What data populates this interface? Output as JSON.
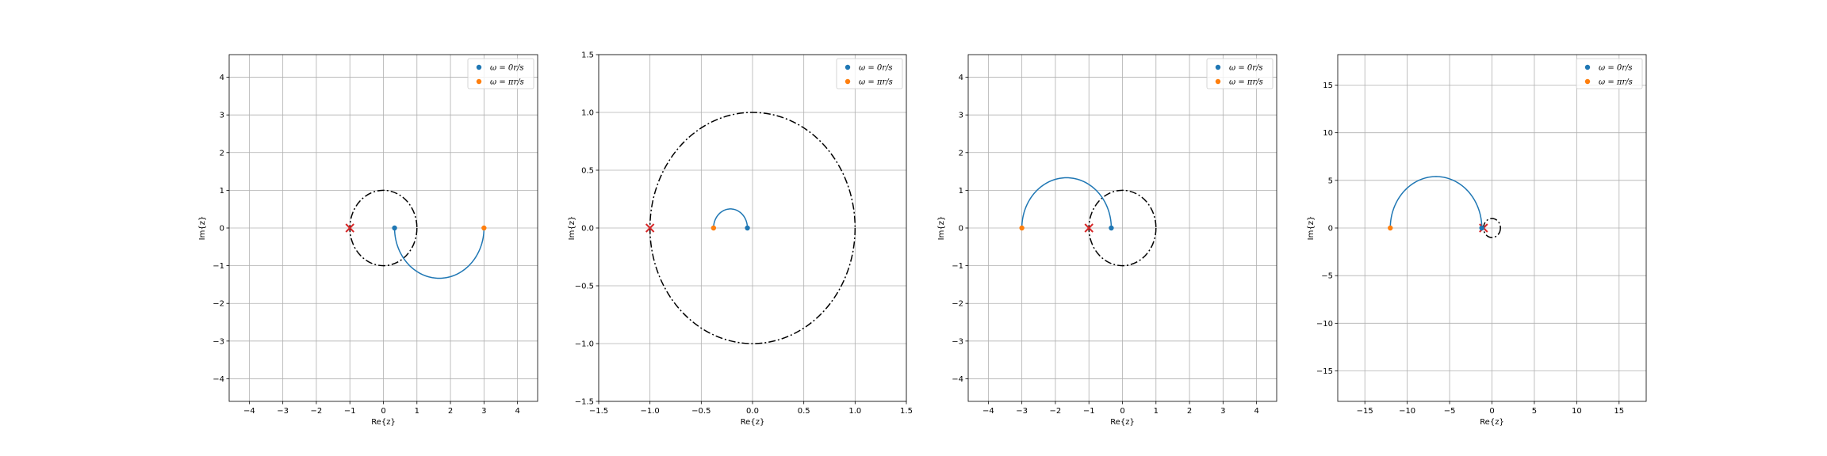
{
  "chart_data": [
    {
      "type": "scatter",
      "xlabel": "Re{z}",
      "ylabel": "Im{z}",
      "xlim": [
        -4.6,
        4.6
      ],
      "ylim": [
        -4.6,
        4.6
      ],
      "xticks": [
        -4,
        -3,
        -2,
        -1,
        0,
        1,
        2,
        3,
        4
      ],
      "yticks": [
        -4,
        -3,
        -2,
        -1,
        0,
        1,
        2,
        3,
        4
      ],
      "grid": true,
      "unit_circle": {
        "center": [
          0,
          0
        ],
        "radius": 1
      },
      "critical_point": [
        -1,
        0
      ],
      "locus": {
        "start": [
          0.333,
          0
        ],
        "end": [
          3,
          0
        ],
        "bulge": "down"
      },
      "series": [
        {
          "name": "$\\omega = 0r/s$",
          "label": "ω = 0r/s",
          "color": "#1f77b4",
          "x": [
            0.333
          ],
          "y": [
            0
          ]
        },
        {
          "name": "$\\omega = \\pi r/s$",
          "label": "ω = πr/s",
          "color": "#ff7f0e",
          "x": [
            3
          ],
          "y": [
            0
          ]
        }
      ],
      "legend": "top-right"
    },
    {
      "type": "scatter",
      "xlabel": "Re{z}",
      "ylabel": "Im{z}",
      "xlim": [
        -1.5,
        1.5
      ],
      "ylim": [
        -1.5,
        1.5
      ],
      "xticks": [
        -1.5,
        -1.0,
        -0.5,
        0.0,
        0.5,
        1.0,
        1.5
      ],
      "yticks": [
        -1.5,
        -1.0,
        -0.5,
        0.0,
        0.5,
        1.0,
        1.5
      ],
      "grid": true,
      "unit_circle": {
        "center": [
          0,
          0
        ],
        "radius": 1
      },
      "critical_point": [
        -1,
        0
      ],
      "locus": {
        "start": [
          -0.05,
          0
        ],
        "end": [
          -0.38,
          0
        ],
        "bulge": "up"
      },
      "series": [
        {
          "name": "$\\omega = 0r/s$",
          "label": "ω = 0r/s",
          "color": "#1f77b4",
          "x": [
            -0.05
          ],
          "y": [
            0
          ]
        },
        {
          "name": "$\\omega = \\pi r/s$",
          "label": "ω = πr/s",
          "color": "#ff7f0e",
          "x": [
            -0.38
          ],
          "y": [
            0
          ]
        }
      ],
      "legend": "top-right"
    },
    {
      "type": "scatter",
      "xlabel": "Re{z}",
      "ylabel": "Im{z}",
      "xlim": [
        -4.6,
        4.6
      ],
      "ylim": [
        -4.6,
        4.6
      ],
      "xticks": [
        -4,
        -3,
        -2,
        -1,
        0,
        1,
        2,
        3,
        4
      ],
      "yticks": [
        -4,
        -3,
        -2,
        -1,
        0,
        1,
        2,
        3,
        4
      ],
      "grid": true,
      "unit_circle": {
        "center": [
          0,
          0
        ],
        "radius": 1
      },
      "critical_point": [
        -1,
        0
      ],
      "locus": {
        "start": [
          -0.333,
          0
        ],
        "end": [
          -3,
          0
        ],
        "bulge": "up"
      },
      "series": [
        {
          "name": "$\\omega = 0r/s$",
          "label": "ω = 0r/s",
          "color": "#1f77b4",
          "x": [
            -0.333
          ],
          "y": [
            0
          ]
        },
        {
          "name": "$\\omega = \\pi r/s$",
          "label": "ω = πr/s",
          "color": "#ff7f0e",
          "x": [
            -3
          ],
          "y": [
            0
          ]
        }
      ],
      "legend": "top-right"
    },
    {
      "type": "scatter",
      "xlabel": "Re{z}",
      "ylabel": "Im{z}",
      "xlim": [
        -18.2,
        18.2
      ],
      "ylim": [
        -18.2,
        18.2
      ],
      "xticks": [
        -15,
        -10,
        -5,
        0,
        5,
        10,
        15
      ],
      "yticks": [
        -15,
        -10,
        -5,
        0,
        5,
        10,
        15
      ],
      "grid": true,
      "unit_circle": {
        "center": [
          0,
          0
        ],
        "radius": 1
      },
      "critical_point": [
        -1,
        0
      ],
      "locus": {
        "start": [
          -1.2,
          0
        ],
        "end": [
          -12,
          0
        ],
        "bulge": "up"
      },
      "series": [
        {
          "name": "$\\omega = 0r/s$",
          "label": "ω = 0r/s",
          "color": "#1f77b4",
          "x": [
            -1.2
          ],
          "y": [
            0
          ]
        },
        {
          "name": "$\\omega = \\pi r/s$",
          "label": "ω = πr/s",
          "color": "#ff7f0e",
          "x": [
            -12
          ],
          "y": [
            0
          ]
        }
      ],
      "legend": "top-right"
    }
  ]
}
